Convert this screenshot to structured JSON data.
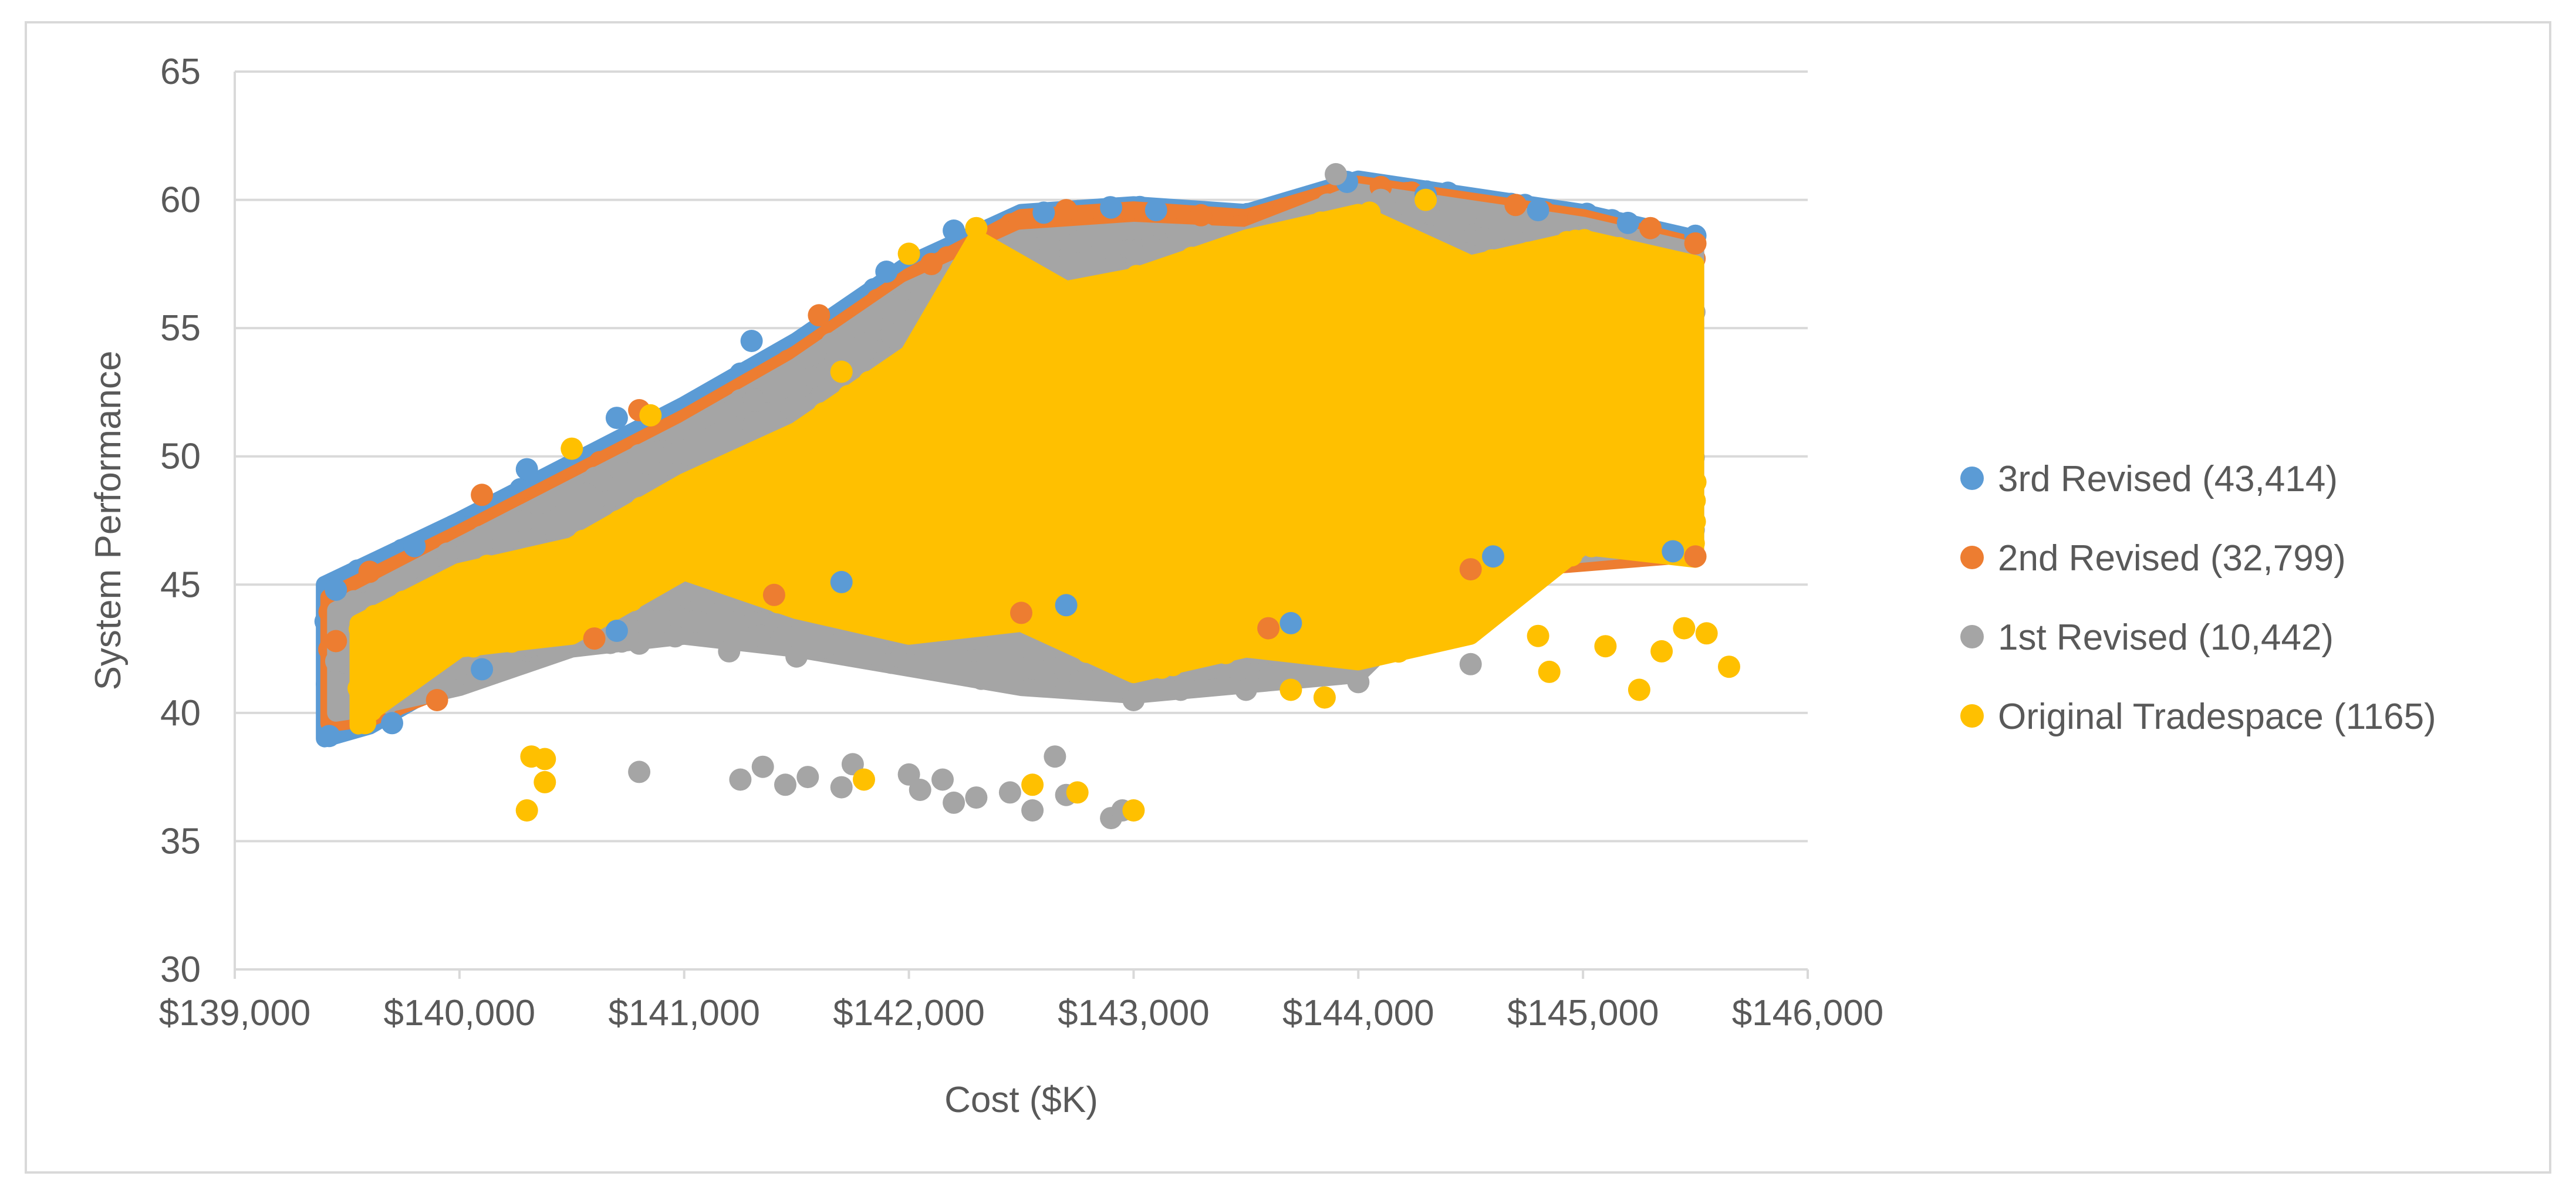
{
  "chart_data": {
    "type": "scatter",
    "title": "",
    "xlabel": "Cost ($K)",
    "ylabel": "System Performance",
    "xlim": [
      139000,
      146000
    ],
    "ylim": [
      30,
      65
    ],
    "x_ticks": [
      139000,
      140000,
      141000,
      142000,
      143000,
      144000,
      145000,
      146000
    ],
    "x_tick_labels": [
      "$139,000",
      "$140,000",
      "$141,000",
      "$142,000",
      "$143,000",
      "$144,000",
      "$145,000",
      "$146,000"
    ],
    "y_ticks": [
      30,
      35,
      40,
      45,
      50,
      55,
      60,
      65
    ],
    "y_tick_labels": [
      "30",
      "35",
      "40",
      "45",
      "50",
      "55",
      "60",
      "65"
    ],
    "grid": "horizontal",
    "legend_position": "right",
    "series": [
      {
        "name": "3rd Revised (43,414)",
        "color": "#5B9BD5",
        "envelope": [
          [
            139400,
            39
          ],
          [
            139400,
            45
          ],
          [
            140000,
            47.5
          ],
          [
            141000,
            52
          ],
          [
            141500,
            54.5
          ],
          [
            142000,
            57.5
          ],
          [
            142500,
            59.5
          ],
          [
            143000,
            59.8
          ],
          [
            143500,
            59.5
          ],
          [
            144000,
            60.8
          ],
          [
            145000,
            59.5
          ],
          [
            145500,
            58.5
          ],
          [
            145500,
            46.5
          ],
          [
            144500,
            46
          ],
          [
            143500,
            43.5
          ],
          [
            142500,
            44
          ],
          [
            141500,
            45
          ],
          [
            140500,
            43
          ],
          [
            140000,
            41.5
          ],
          [
            139600,
            39.5
          ]
        ],
        "points": [
          [
            139420,
            39.1
          ],
          [
            139450,
            44.8
          ],
          [
            139800,
            46.5
          ],
          [
            140300,
            49.5
          ],
          [
            140700,
            51.5
          ],
          [
            141300,
            54.5
          ],
          [
            141900,
            57.2
          ],
          [
            142200,
            58.8
          ],
          [
            142600,
            59.5
          ],
          [
            142900,
            59.7
          ],
          [
            143100,
            59.6
          ],
          [
            143950,
            60.7
          ],
          [
            144300,
            60.2
          ],
          [
            144800,
            59.6
          ],
          [
            145200,
            59.1
          ],
          [
            145500,
            58.6
          ],
          [
            145400,
            46.3
          ],
          [
            144600,
            46.1
          ],
          [
            143700,
            43.5
          ],
          [
            142700,
            44.2
          ],
          [
            141700,
            45.1
          ],
          [
            140700,
            43.2
          ],
          [
            140100,
            41.7
          ],
          [
            139700,
            39.6
          ]
        ]
      },
      {
        "name": "2nd Revised (32,799)",
        "color": "#ED7D31",
        "envelope": [
          [
            139420,
            39.6
          ],
          [
            139420,
            44.5
          ],
          [
            140000,
            47
          ],
          [
            141000,
            51.5
          ],
          [
            141500,
            54
          ],
          [
            142000,
            57
          ],
          [
            142500,
            59.3
          ],
          [
            143000,
            59.6
          ],
          [
            143500,
            59.3
          ],
          [
            144000,
            60.6
          ],
          [
            145000,
            59.3
          ],
          [
            145500,
            58.2
          ],
          [
            145500,
            46.2
          ],
          [
            144500,
            45.5
          ],
          [
            143500,
            43.2
          ],
          [
            142500,
            43.8
          ],
          [
            141500,
            44.6
          ],
          [
            140500,
            42.8
          ],
          [
            140000,
            41.2
          ],
          [
            139600,
            39.8
          ]
        ],
        "points": [
          [
            139450,
            42.8
          ],
          [
            139600,
            45.5
          ],
          [
            140100,
            48.5
          ],
          [
            140800,
            51.8
          ],
          [
            141600,
            55.5
          ],
          [
            142100,
            57.5
          ],
          [
            142700,
            59.6
          ],
          [
            143300,
            59.4
          ],
          [
            144100,
            60.5
          ],
          [
            144700,
            59.8
          ],
          [
            145300,
            58.9
          ],
          [
            145500,
            58.3
          ],
          [
            145500,
            46.1
          ],
          [
            144500,
            45.6
          ],
          [
            143600,
            43.3
          ],
          [
            142500,
            43.9
          ],
          [
            141400,
            44.6
          ],
          [
            140600,
            42.9
          ],
          [
            139900,
            40.5
          ]
        ]
      },
      {
        "name": "1st Revised (10,442)",
        "color": "#A5A5A5",
        "envelope": [
          [
            139450,
            40
          ],
          [
            139450,
            44
          ],
          [
            140000,
            46.5
          ],
          [
            141000,
            51
          ],
          [
            141500,
            53.5
          ],
          [
            142000,
            56.5
          ],
          [
            142500,
            58.5
          ],
          [
            143000,
            58.8
          ],
          [
            143500,
            58.6
          ],
          [
            144000,
            60.3
          ],
          [
            145000,
            59
          ],
          [
            145500,
            58
          ],
          [
            145500,
            46.6
          ],
          [
            144500,
            45.8
          ],
          [
            144000,
            41.5
          ],
          [
            143000,
            40.7
          ],
          [
            142500,
            41
          ],
          [
            141500,
            42.5
          ],
          [
            141000,
            43
          ],
          [
            140500,
            42.5
          ],
          [
            140000,
            41
          ],
          [
            139600,
            40.2
          ]
        ],
        "points": [
          [
            140800,
            37.7
          ],
          [
            141250,
            37.4
          ],
          [
            141350,
            37.9
          ],
          [
            141450,
            37.2
          ],
          [
            141550,
            37.5
          ],
          [
            141700,
            37.1
          ],
          [
            141750,
            38.0
          ],
          [
            142000,
            37.6
          ],
          [
            142050,
            37.0
          ],
          [
            142150,
            37.4
          ],
          [
            142200,
            36.5
          ],
          [
            142300,
            36.7
          ],
          [
            142450,
            36.9
          ],
          [
            142550,
            36.2
          ],
          [
            142650,
            38.3
          ],
          [
            142700,
            36.8
          ],
          [
            142900,
            35.9
          ],
          [
            142950,
            36.2
          ],
          [
            143900,
            61.0
          ],
          [
            144100,
            60.0
          ],
          [
            143000,
            40.5
          ],
          [
            143500,
            40.9
          ],
          [
            144000,
            41.2
          ],
          [
            144500,
            41.9
          ],
          [
            140800,
            42.7
          ],
          [
            141200,
            42.4
          ],
          [
            141500,
            42.2
          ],
          [
            142000,
            41.9
          ],
          [
            142500,
            41.7
          ]
        ]
      },
      {
        "name": "Original Tradespace (1165)",
        "color": "#FFC000",
        "envelope": [
          [
            139550,
            39.5
          ],
          [
            139550,
            43.5
          ],
          [
            140000,
            45.5
          ],
          [
            140500,
            46.5
          ],
          [
            141000,
            49
          ],
          [
            141500,
            51
          ],
          [
            142000,
            54
          ],
          [
            142300,
            58.5
          ],
          [
            142700,
            56.5
          ],
          [
            143000,
            57
          ],
          [
            143500,
            58.5
          ],
          [
            144000,
            59.5
          ],
          [
            144500,
            57.5
          ],
          [
            145000,
            58.5
          ],
          [
            145500,
            57.5
          ],
          [
            145500,
            46
          ],
          [
            145000,
            46.5
          ],
          [
            144500,
            43
          ],
          [
            144000,
            42
          ],
          [
            143500,
            42.5
          ],
          [
            143000,
            41.5
          ],
          [
            142500,
            43.5
          ],
          [
            142000,
            43
          ],
          [
            141500,
            44
          ],
          [
            141000,
            45.5
          ],
          [
            140500,
            43
          ],
          [
            140000,
            42.5
          ],
          [
            139600,
            40
          ]
        ],
        "points": [
          [
            139580,
            39.6
          ],
          [
            139600,
            43.5
          ],
          [
            140300,
            36.2
          ],
          [
            140320,
            38.3
          ],
          [
            140380,
            38.2
          ],
          [
            140380,
            37.3
          ],
          [
            141800,
            37.4
          ],
          [
            142550,
            37.2
          ],
          [
            142750,
            36.9
          ],
          [
            143000,
            36.2
          ],
          [
            144800,
            43.0
          ],
          [
            144850,
            41.6
          ],
          [
            145100,
            42.6
          ],
          [
            145250,
            40.9
          ],
          [
            145350,
            42.4
          ],
          [
            145450,
            43.3
          ],
          [
            145550,
            43.1
          ],
          [
            145650,
            41.8
          ],
          [
            142300,
            58.9
          ],
          [
            144050,
            59.5
          ],
          [
            144300,
            60.0
          ],
          [
            143850,
            40.6
          ],
          [
            143700,
            40.9
          ],
          [
            140500,
            50.3
          ],
          [
            140850,
            51.6
          ],
          [
            141700,
            53.3
          ],
          [
            142000,
            57.9
          ],
          [
            145500,
            49.0
          ]
        ]
      }
    ]
  }
}
